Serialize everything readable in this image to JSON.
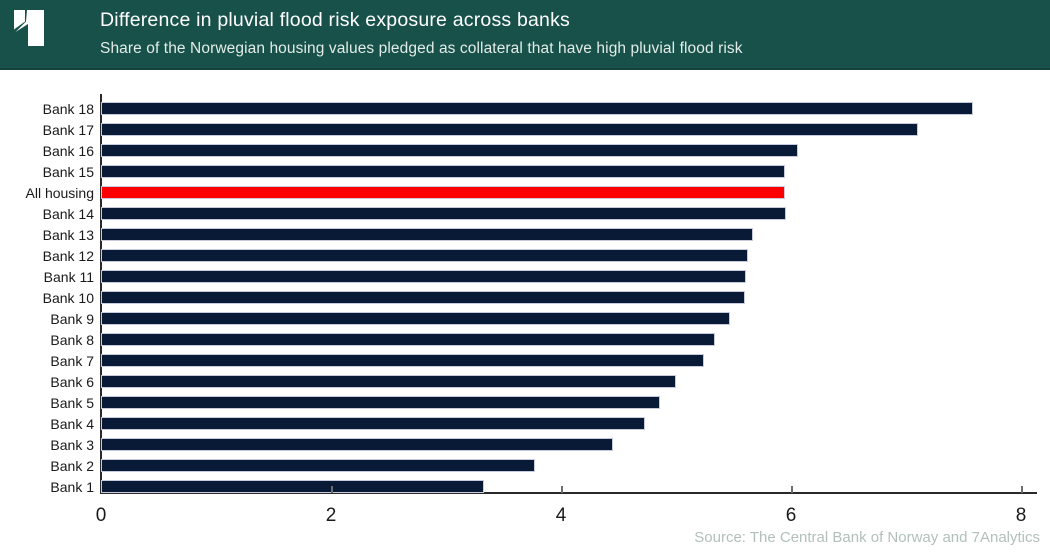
{
  "header": {
    "title": "Difference in pluvial flood risk exposure across banks",
    "subtitle": "Share of the Norwegian housing values pledged as collateral that have high pluvial flood risk",
    "bg_color": "#18514a",
    "logo_name": "7analytics-logo",
    "logo_color": "#ffffff"
  },
  "chart_data": {
    "type": "bar",
    "orientation": "horizontal",
    "title": "Difference in pluvial flood risk exposure across banks",
    "subtitle": "Share of the Norwegian housing values pledged as collateral that have high pluvial flood risk",
    "xlabel": "",
    "ylabel": "",
    "xlim": [
      0,
      8
    ],
    "xticks": [
      0,
      2,
      4,
      6,
      8
    ],
    "grid": false,
    "legend": false,
    "categories": [
      "Bank 18",
      "Bank 17",
      "Bank 16",
      "Bank 15",
      "All housing",
      "Bank 14",
      "Bank 13",
      "Bank 12",
      "Bank 11",
      "Bank 10",
      "Bank 9",
      "Bank 8",
      "Bank 7",
      "Bank 6",
      "Bank 5",
      "Bank 4",
      "Bank 3",
      "Bank 2",
      "Bank 1"
    ],
    "values": [
      7.58,
      7.1,
      6.06,
      5.95,
      5.95,
      5.96,
      5.67,
      5.63,
      5.61,
      5.6,
      5.47,
      5.34,
      5.24,
      5.0,
      4.86,
      4.73,
      4.45,
      3.77,
      3.33
    ],
    "highlight_category": "All housing",
    "bar_color": "#081a36",
    "highlight_color": "#fc0000",
    "bar_edge_color": "#c8cbde"
  },
  "footer": {
    "source": "Source: The Central Bank of Norway and 7Analytics"
  }
}
